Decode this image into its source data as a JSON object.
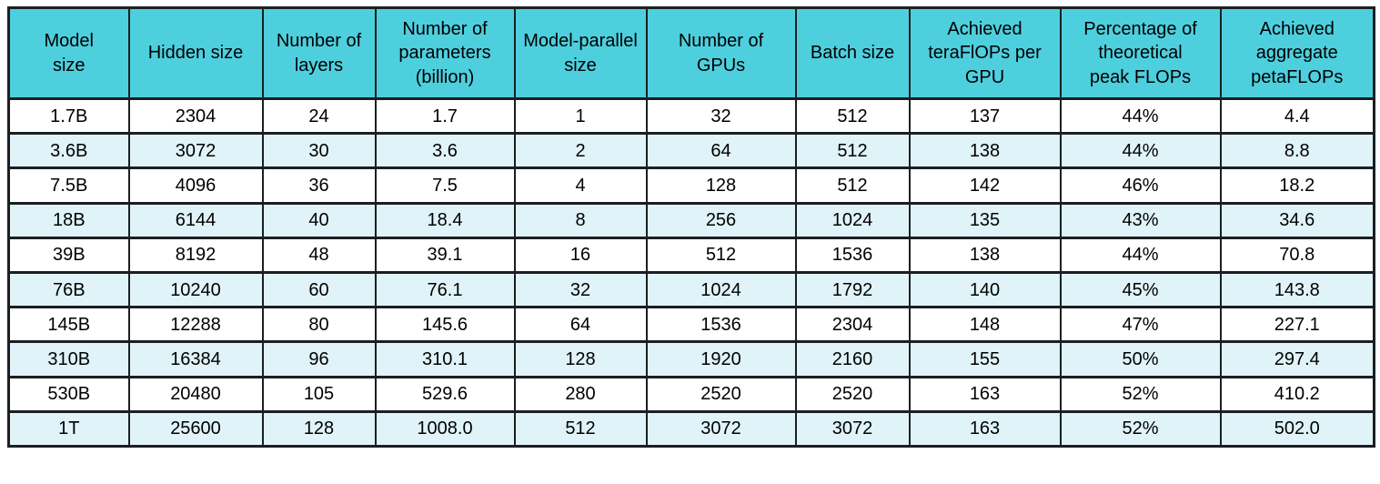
{
  "chart_data": {
    "type": "table",
    "columns": [
      "Model\nsize",
      "Hidden size",
      "Number of\nlayers",
      "Number of\nparameters\n(billion)",
      "Model-parallel\nsize",
      "Number of\nGPUs",
      "Batch size",
      "Achieved\nteraFlOPs per\nGPU",
      "Percentage of\ntheoretical\npeak FLOPs",
      "Achieved\naggregate\npetaFLOPs"
    ],
    "rows": [
      [
        "1.7B",
        "2304",
        "24",
        "1.7",
        "1",
        "32",
        "512",
        "137",
        "44%",
        "4.4"
      ],
      [
        "3.6B",
        "3072",
        "30",
        "3.6",
        "2",
        "64",
        "512",
        "138",
        "44%",
        "8.8"
      ],
      [
        "7.5B",
        "4096",
        "36",
        "7.5",
        "4",
        "128",
        "512",
        "142",
        "46%",
        "18.2"
      ],
      [
        "18B",
        "6144",
        "40",
        "18.4",
        "8",
        "256",
        "1024",
        "135",
        "43%",
        "34.6"
      ],
      [
        "39B",
        "8192",
        "48",
        "39.1",
        "16",
        "512",
        "1536",
        "138",
        "44%",
        "70.8"
      ],
      [
        "76B",
        "10240",
        "60",
        "76.1",
        "32",
        "1024",
        "1792",
        "140",
        "45%",
        "143.8"
      ],
      [
        "145B",
        "12288",
        "80",
        "145.6",
        "64",
        "1536",
        "2304",
        "148",
        "47%",
        "227.1"
      ],
      [
        "310B",
        "16384",
        "96",
        "310.1",
        "128",
        "1920",
        "2160",
        "155",
        "50%",
        "297.4"
      ],
      [
        "530B",
        "20480",
        "105",
        "529.6",
        "280",
        "2520",
        "2520",
        "163",
        "52%",
        "410.2"
      ],
      [
        "1T",
        "25600",
        "128",
        "1008.0",
        "512",
        "3072",
        "3072",
        "163",
        "52%",
        "502.0"
      ]
    ],
    "layout": {
      "header_rows": 1,
      "row_striping": "even rows white, odd rows light blue",
      "alignment": "center"
    }
  },
  "colors": {
    "header_bg": "#4ECFDE",
    "row_bg": "#FFFFFF",
    "row_alt_bg": "#DFF3F8",
    "border": "#1B1F20",
    "text": "#000000"
  }
}
